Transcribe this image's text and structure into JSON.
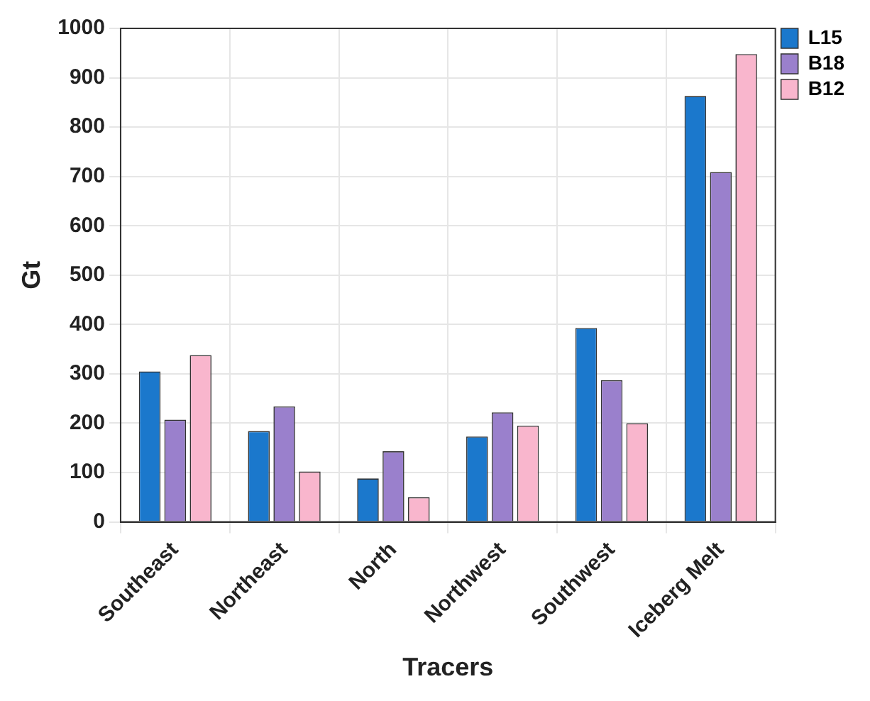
{
  "chart_data": {
    "type": "bar",
    "xlabel": "Tracers",
    "ylabel": "Gt",
    "categories": [
      "Southeast",
      "Northeast",
      "North",
      "Northwest",
      "Southwest",
      "Iceberg Melt"
    ],
    "series": [
      {
        "name": "L15",
        "color": "#1b78cc",
        "values": [
          305,
          184,
          88,
          173,
          393,
          863
        ]
      },
      {
        "name": "B18",
        "color": "#9a80cc",
        "values": [
          207,
          234,
          143,
          222,
          287,
          709
        ]
      },
      {
        "name": "B12",
        "color": "#f9b6cd",
        "values": [
          338,
          102,
          50,
          195,
          200,
          948
        ]
      }
    ],
    "ylim": [
      0,
      1000
    ],
    "yticks": [
      0,
      100,
      200,
      300,
      400,
      500,
      600,
      700,
      800,
      900,
      1000
    ],
    "grid": true,
    "legend": "top right"
  }
}
